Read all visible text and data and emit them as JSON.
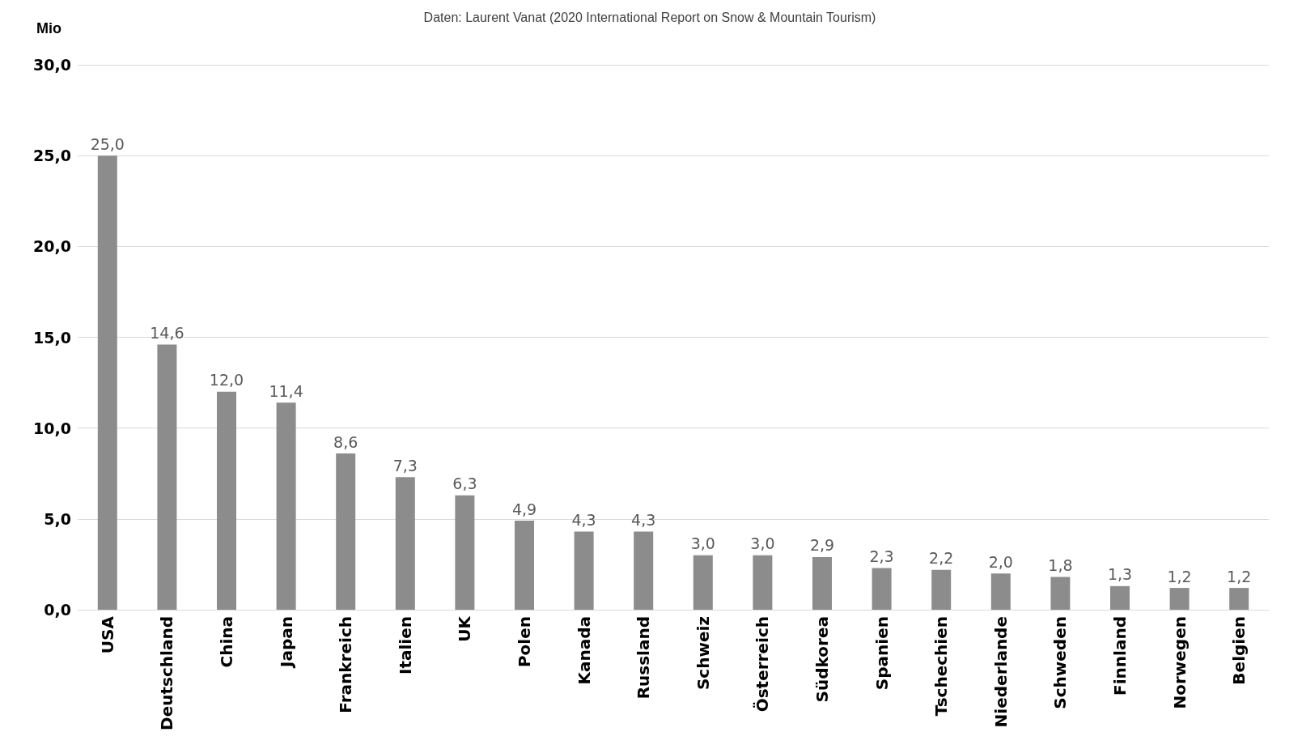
{
  "chart_data": {
    "type": "bar",
    "annotations": [
      "Daten: Laurent Vanat (2020 International Report on Snow & Mountain Tourism)"
    ],
    "ylabel": "Mio",
    "categories": [
      "USA",
      "Deutschland",
      "China",
      "Japan",
      "Frankreich",
      "Italien",
      "UK",
      "Polen",
      "Kanada",
      "Russland",
      "Schweiz",
      "Österreich",
      "Südkorea",
      "Spanien",
      "Tschechien",
      "Niederlande",
      "Schweden",
      "Finnland",
      "Norwegen",
      "Belgien"
    ],
    "values": [
      25.0,
      14.6,
      12.0,
      11.4,
      8.6,
      7.3,
      6.3,
      4.9,
      4.3,
      4.3,
      3.0,
      3.0,
      2.9,
      2.3,
      2.2,
      2.0,
      1.8,
      1.3,
      1.2,
      1.2
    ],
    "value_labels": [
      "25,0",
      "14,6",
      "12,0",
      "11,4",
      "8,6",
      "7,3",
      "6,3",
      "4,9",
      "4,3",
      "4,3",
      "3,0",
      "3,0",
      "2,9",
      "2,3",
      "2,2",
      "2,0",
      "1,8",
      "1,3",
      "1,2",
      "1,2"
    ],
    "color": "#8c8c8c",
    "ylim": [
      0,
      30
    ],
    "yticks": [
      {
        "value": 0,
        "label": "0,0"
      },
      {
        "value": 5,
        "label": "5,0"
      },
      {
        "value": 10,
        "label": "10,0"
      },
      {
        "value": 15,
        "label": "15,0"
      },
      {
        "value": 20,
        "label": "20,0"
      },
      {
        "value": 25,
        "label": "25,0"
      },
      {
        "value": 30,
        "label": "30,0"
      }
    ],
    "grid": "y"
  }
}
